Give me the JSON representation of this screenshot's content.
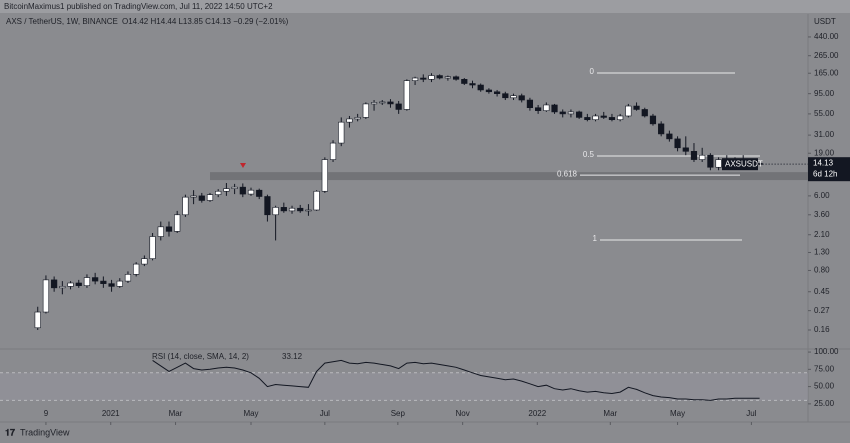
{
  "page": {
    "attribution": "BitcoinMaximus1 published on TradingView.com, Jul 11, 2022 14:50 UTC+2",
    "brand": "TradingView"
  },
  "chart_data": {
    "type": "candlestick",
    "title": "AXS / TetherUS, 1W, BINANCE",
    "quote": "O14.42 H14.44 L13.85 C14.13 −0.29 (−2.01%)",
    "axis_unit": "USDT",
    "symbol": "AXSUSDT",
    "countdown": "6d 12h",
    "log_scale": true,
    "xlim": [
      -4.6,
      93.9
    ],
    "xticks": [
      {
        "value": 1,
        "label": "9"
      },
      {
        "value": 8.9,
        "label": "2021"
      },
      {
        "value": 16.8,
        "label": "Mar"
      },
      {
        "value": 26,
        "label": "May"
      },
      {
        "value": 35,
        "label": "Jul"
      },
      {
        "value": 43.9,
        "label": "Sep"
      },
      {
        "value": 51.8,
        "label": "Nov"
      },
      {
        "value": 60.9,
        "label": "2022"
      },
      {
        "value": 69.8,
        "label": "Mar"
      },
      {
        "value": 78,
        "label": "May"
      },
      {
        "value": 87,
        "label": "Jul"
      }
    ],
    "ylim": [
      0.0984,
      796
    ],
    "yticks": [
      {
        "value": 440,
        "label": "440.00"
      },
      {
        "value": 265,
        "label": "265.00"
      },
      {
        "value": 165,
        "label": "165.00"
      },
      {
        "value": 95,
        "label": "95.00"
      },
      {
        "value": 55,
        "label": "55.00"
      },
      {
        "value": 31,
        "label": "31.00"
      },
      {
        "value": 19,
        "label": "19.00"
      },
      {
        "value": 6,
        "label": "6.00"
      },
      {
        "value": 3.6,
        "label": "3.60"
      },
      {
        "value": 2.1,
        "label": "2.10"
      },
      {
        "value": 1.3,
        "label": "1.30"
      },
      {
        "value": 0.8,
        "label": "0.80"
      },
      {
        "value": 0.45,
        "label": "0.45"
      },
      {
        "value": 0.27,
        "label": "0.27"
      },
      {
        "value": 0.16,
        "label": "0.16"
      }
    ],
    "up_color": "#ffffff",
    "down_color": "#131722",
    "open": [
      0.17,
      0.26,
      0.62,
      0.5,
      0.52,
      0.57,
      0.53,
      0.66,
      0.6,
      0.56,
      0.52,
      0.6,
      0.72,
      0.95,
      1.1,
      2.0,
      2.6,
      2.3,
      3.6,
      5.8,
      6.0,
      5.3,
      6.2,
      6.8,
      7.3,
      7.6,
      6.3,
      7.0,
      5.9,
      3.6,
      4.4,
      4.0,
      4.3,
      4.0,
      4.1,
      6.8,
      16,
      25,
      44,
      48,
      50,
      72,
      75,
      76,
      72,
      62,
      135,
      145,
      140,
      155,
      145,
      150,
      140,
      125,
      120,
      105,
      100,
      95,
      85,
      90,
      80,
      65,
      60,
      70,
      58,
      55,
      58,
      50,
      47,
      52,
      50,
      47,
      52,
      68,
      62,
      52,
      42,
      32,
      28,
      22,
      20,
      16,
      18,
      13,
      16,
      15,
      16,
      15,
      14.42
    ],
    "high": [
      0.3,
      0.7,
      0.68,
      0.6,
      0.6,
      0.62,
      0.72,
      0.75,
      0.68,
      0.62,
      0.65,
      0.78,
      1.0,
      1.2,
      2.2,
      3.0,
      3.0,
      4.0,
      6.2,
      7.0,
      6.5,
      6.5,
      7.2,
      8.5,
      8.3,
      8.4,
      7.5,
      7.3,
      6.2,
      4.6,
      5.0,
      4.6,
      4.7,
      4.8,
      7.0,
      17,
      27,
      50,
      52,
      55,
      75,
      80,
      80,
      82,
      78,
      140,
      150,
      160,
      165,
      160,
      155,
      155,
      145,
      135,
      125,
      110,
      105,
      100,
      95,
      95,
      85,
      70,
      75,
      72,
      62,
      62,
      60,
      55,
      55,
      58,
      55,
      55,
      72,
      75,
      65,
      55,
      45,
      35,
      30,
      30,
      25,
      22,
      19,
      17,
      18,
      17,
      18,
      16,
      14.44
    ],
    "low": [
      0.16,
      0.25,
      0.45,
      0.42,
      0.48,
      0.5,
      0.5,
      0.55,
      0.5,
      0.45,
      0.5,
      0.57,
      0.68,
      0.9,
      1.05,
      1.8,
      2.0,
      2.2,
      3.4,
      4.8,
      5.0,
      5.1,
      5.8,
      6.0,
      6.3,
      5.8,
      6.0,
      5.5,
      3.0,
      1.8,
      3.8,
      3.7,
      3.8,
      3.5,
      4.0,
      6.5,
      15,
      23,
      38,
      45,
      48,
      60,
      70,
      65,
      55,
      60,
      120,
      130,
      130,
      140,
      135,
      135,
      120,
      110,
      100,
      95,
      88,
      80,
      80,
      75,
      60,
      55,
      58,
      55,
      50,
      50,
      48,
      45,
      45,
      48,
      45,
      45,
      50,
      60,
      50,
      40,
      30,
      26,
      20,
      18,
      15,
      15,
      12,
      12,
      14,
      13,
      14,
      13.5,
      13.85
    ],
    "close": [
      0.26,
      0.62,
      0.5,
      0.52,
      0.57,
      0.53,
      0.66,
      0.6,
      0.56,
      0.52,
      0.6,
      0.72,
      0.95,
      1.1,
      2.0,
      2.6,
      2.3,
      3.6,
      5.8,
      6.0,
      5.3,
      6.2,
      6.8,
      7.3,
      7.6,
      6.3,
      7.0,
      5.9,
      3.6,
      4.4,
      4.0,
      4.3,
      4.0,
      4.1,
      6.8,
      16,
      25,
      44,
      48,
      50,
      72,
      75,
      76,
      72,
      62,
      135,
      145,
      140,
      155,
      145,
      150,
      140,
      125,
      120,
      105,
      100,
      95,
      85,
      90,
      80,
      65,
      60,
      70,
      58,
      55,
      58,
      50,
      47,
      52,
      50,
      47,
      52,
      68,
      62,
      52,
      42,
      32,
      28,
      22,
      20,
      16,
      18,
      13,
      16,
      15,
      16,
      15,
      14.4,
      14.13
    ],
    "support_zone": [
      9.2,
      11.4
    ],
    "fib_levels": [
      {
        "label": "0",
        "price": 166
      },
      {
        "label": "0.5",
        "price": 17.6
      },
      {
        "label": "0.618",
        "price": 10.5
      },
      {
        "label": "1",
        "price": 1.82
      }
    ],
    "rsi": {
      "title": "RSI (14, close, SMA, 14, 2)",
      "color": "#131722",
      "ylim": [
        19,
        103
      ],
      "yticks": [
        {
          "value": 100,
          "label": "100.00"
        },
        {
          "value": 75,
          "label": "75.00"
        },
        {
          "value": 50,
          "label": "50.00"
        },
        {
          "value": 25,
          "label": "25.00"
        }
      ],
      "band": [
        30,
        70
      ],
      "values": [
        null,
        null,
        null,
        null,
        null,
        null,
        null,
        null,
        null,
        null,
        null,
        null,
        null,
        null,
        88,
        80,
        72,
        78,
        84,
        76,
        74,
        75,
        77,
        78,
        77,
        74,
        70,
        62,
        50,
        53,
        52,
        51,
        50,
        49,
        72,
        84,
        86,
        88,
        84,
        83,
        85,
        84,
        82,
        80,
        76,
        84,
        85,
        83,
        84,
        82,
        80,
        78,
        74,
        70,
        66,
        64,
        62,
        60,
        61,
        58,
        54,
        50,
        52,
        47,
        45,
        47,
        44,
        42,
        43,
        41,
        40,
        42,
        49,
        46,
        41,
        37,
        35,
        34,
        32,
        32,
        31,
        31,
        30,
        32,
        32,
        33,
        33,
        33,
        33.12
      ]
    }
  }
}
